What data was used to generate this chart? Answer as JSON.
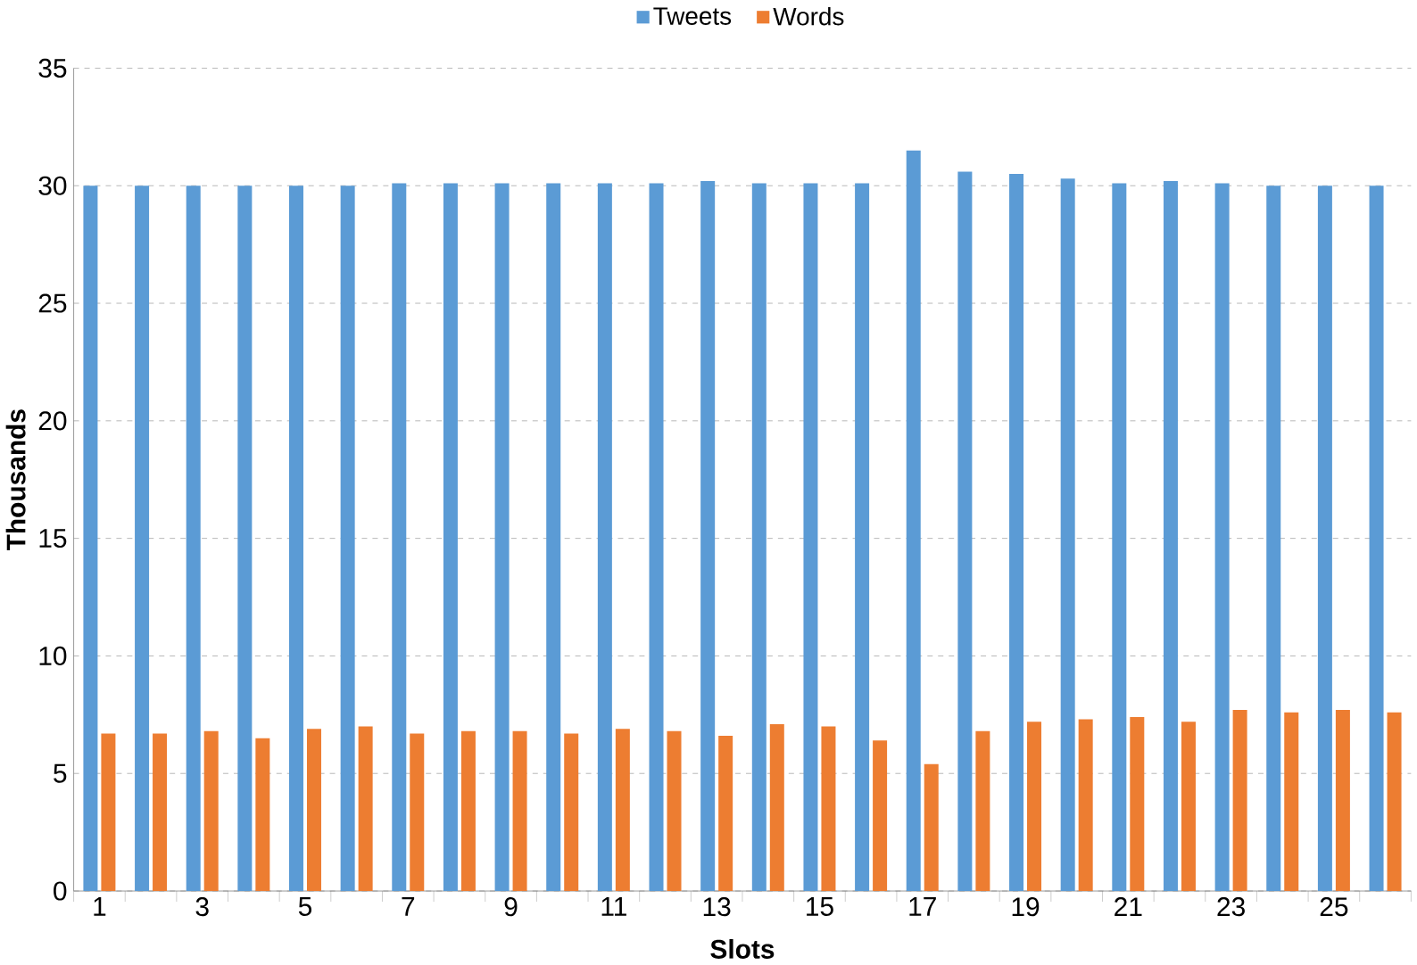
{
  "chart_data": {
    "type": "bar",
    "xlabel": "Slots",
    "ylabel": "Thousands",
    "categories": [
      "1",
      null,
      "3",
      null,
      "5",
      null,
      "7",
      null,
      "9",
      null,
      "11",
      null,
      "13",
      null,
      "15",
      null,
      "17",
      null,
      "19",
      null,
      "21",
      null,
      "23",
      null,
      "25",
      null
    ],
    "series": [
      {
        "name": "Tweets",
        "color": "#5b9bd5",
        "values": [
          30.0,
          30.0,
          30.0,
          30.0,
          30.0,
          30.0,
          30.1,
          30.1,
          30.1,
          30.1,
          30.1,
          30.1,
          30.2,
          30.1,
          30.1,
          30.1,
          31.5,
          30.6,
          30.5,
          30.3,
          30.1,
          30.2,
          30.1,
          30.0,
          30.0,
          30.0
        ]
      },
      {
        "name": "Words",
        "color": "#ed7d31",
        "values": [
          6.7,
          6.7,
          6.8,
          6.5,
          6.9,
          7.0,
          6.7,
          6.8,
          6.8,
          6.7,
          6.9,
          6.8,
          6.6,
          7.1,
          7.0,
          6.4,
          5.4,
          6.8,
          7.2,
          7.3,
          7.4,
          7.2,
          7.7,
          7.6,
          7.7,
          7.6
        ]
      }
    ],
    "ylim": [
      0,
      35
    ],
    "yticks": [
      0,
      5,
      10,
      15,
      20,
      25,
      30,
      35
    ],
    "grid": "y",
    "legend": "top"
  }
}
